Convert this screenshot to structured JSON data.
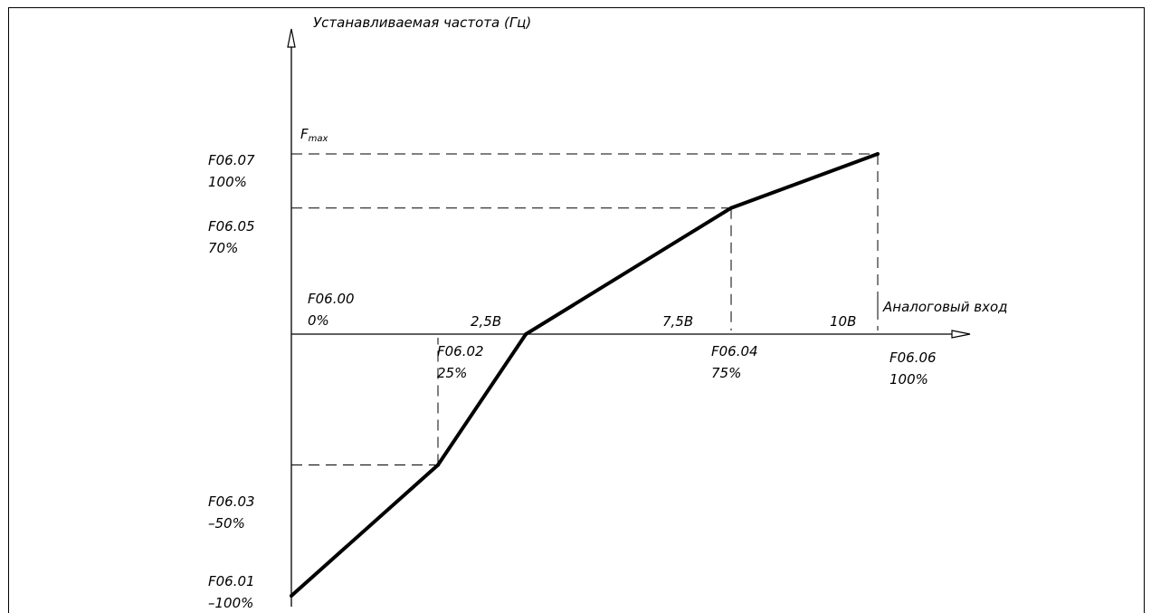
{
  "chart_data": {
    "type": "line",
    "title": "",
    "y_axis_label": "Устанавливаемая частота (Гц)",
    "x_axis_label": "Аналоговый вход",
    "fmax_label": "F",
    "fmax_sub": "max",
    "x_ticks": [
      {
        "label": "2,5В",
        "param": "F06.02",
        "pct": "25%",
        "value": 25
      },
      {
        "label": "7,5В",
        "param": "F06.04",
        "pct": "75%",
        "value": 75
      },
      {
        "label": "10В",
        "param": "F06.06",
        "pct": "100%",
        "value": 100
      }
    ],
    "origin": {
      "param": "F06.00",
      "pct": "0%"
    },
    "y_ticks": [
      {
        "param": "F06.07",
        "pct": "100%",
        "value": 100
      },
      {
        "param": "F06.05",
        "pct": "70%",
        "value": 70
      },
      {
        "param": "F06.03",
        "pct": "-50%",
        "display_pct": "–50%",
        "value": -50
      },
      {
        "param": "F06.01",
        "pct": "-100%",
        "display_pct": "–100%",
        "value": -100
      }
    ],
    "series": [
      {
        "x": [
          0,
          25,
          40,
          75,
          100
        ],
        "y": [
          -100,
          -50,
          0,
          70,
          100
        ]
      }
    ],
    "xlim": [
      0,
      100
    ],
    "ylim": [
      -100,
      100
    ],
    "line_color": "#000000"
  }
}
